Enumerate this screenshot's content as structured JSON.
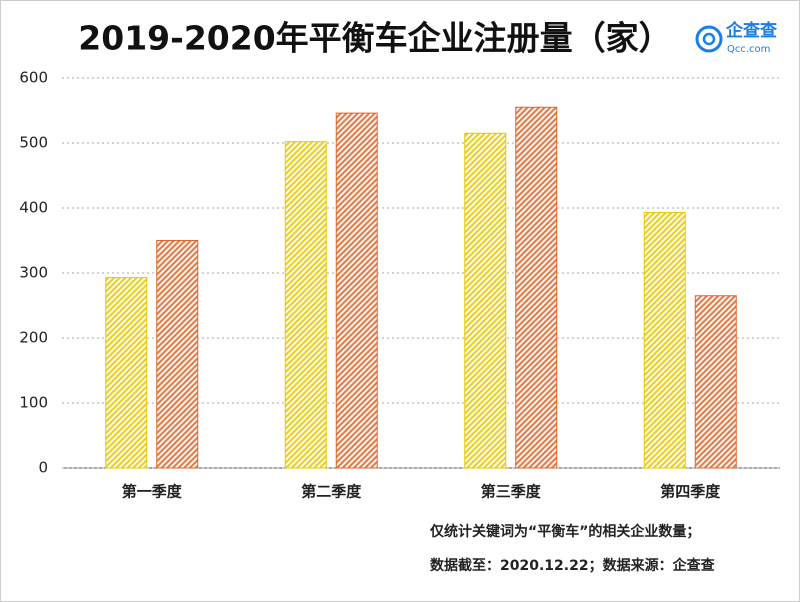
{
  "chart_data": {
    "type": "bar",
    "title": "2019-2020年平衡车企业注册量（家）",
    "logo": {
      "name": "企查查",
      "site": "Qcc.com"
    },
    "notes": [
      "仅统计关键词为“平衡车”的相关企业数量；",
      "数据截至：2020.12.22；数据来源：企查查"
    ],
    "categories": [
      "第一季度",
      "第二季度",
      "第三季度",
      "第四季度"
    ],
    "series": [
      {
        "color": "#e8c800",
        "values": [
          293,
          502,
          515,
          393
        ]
      },
      {
        "color": "#e0662a",
        "values": [
          350,
          546,
          555,
          265
        ]
      }
    ],
    "ylim": [
      0,
      600
    ],
    "yticks": [
      0,
      100,
      200,
      300,
      400,
      500,
      600
    ],
    "grid": true
  }
}
